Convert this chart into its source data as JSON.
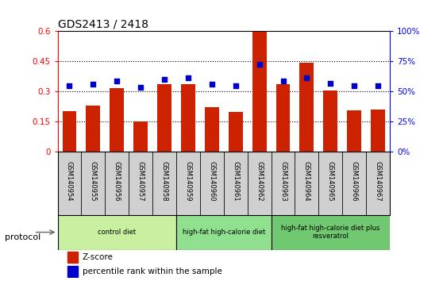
{
  "title": "GDS2413 / 2418",
  "samples": [
    "GSM140954",
    "GSM140955",
    "GSM140956",
    "GSM140957",
    "GSM140958",
    "GSM140959",
    "GSM140960",
    "GSM140961",
    "GSM140962",
    "GSM140963",
    "GSM140964",
    "GSM140965",
    "GSM140966",
    "GSM140967"
  ],
  "zscore": [
    0.2,
    0.23,
    0.315,
    0.148,
    0.335,
    0.335,
    0.22,
    0.195,
    0.595,
    0.335,
    0.44,
    0.305,
    0.205,
    0.21
  ],
  "percentile": [
    0.545,
    0.555,
    0.585,
    0.535,
    0.595,
    0.61,
    0.555,
    0.545,
    0.72,
    0.585,
    0.61,
    0.565,
    0.545,
    0.545
  ],
  "bar_color": "#cc2200",
  "dot_color": "#0000cc",
  "ylim_left": [
    0,
    0.6
  ],
  "ylim_right": [
    0,
    1.0
  ],
  "yticks_left": [
    0,
    0.15,
    0.3,
    0.45,
    0.6
  ],
  "ytick_labels_left": [
    "0",
    "0.15",
    "0.3",
    "0.45",
    "0.6"
  ],
  "yticks_right": [
    0,
    0.25,
    0.5,
    0.75,
    1.0
  ],
  "ytick_labels_right": [
    "0%",
    "25%",
    "50%",
    "75%",
    "100%"
  ],
  "groups": [
    {
      "label": "control diet",
      "start": 0,
      "end": 5,
      "color": "#c8f0a0"
    },
    {
      "label": "high-fat high-calorie diet",
      "start": 5,
      "end": 9,
      "color": "#90e090"
    },
    {
      "label": "high-fat high-calorie diet plus\nresveratrol",
      "start": 9,
      "end": 14,
      "color": "#70c870"
    }
  ],
  "protocol_label": "protocol",
  "legend_zscore": "Z-score",
  "legend_percentile": "percentile rank within the sample",
  "tick_bg_color": "#d0d0d0",
  "tick_border_color": "#888888"
}
